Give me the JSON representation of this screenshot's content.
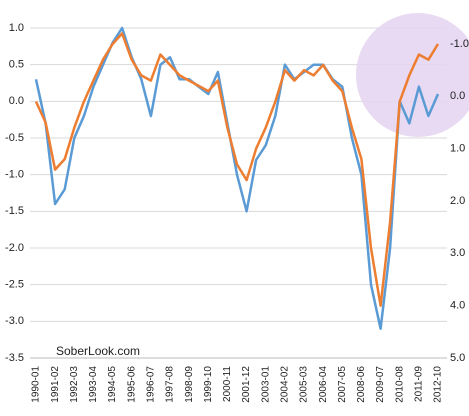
{
  "chart_data": {
    "type": "line",
    "annotations": [
      "SoberLook.com"
    ],
    "categories": [
      "1990-01",
      null,
      "1991-02",
      null,
      "1992-03",
      null,
      "1993-04",
      null,
      "1994-05",
      null,
      "1995-06",
      null,
      "1996-07",
      null,
      "1997-08",
      null,
      "1998-09",
      null,
      "1999-10",
      null,
      "2000-11",
      null,
      "2001-12",
      null,
      "2003-01",
      null,
      "2004-02",
      null,
      "2005-03",
      null,
      "2006-04",
      null,
      "2007-05",
      null,
      "2008-06",
      null,
      "2009-07",
      null,
      "2010-08",
      null,
      "2011-09",
      null,
      "2012-10"
    ],
    "series": [
      {
        "color": "#5b9bd5",
        "values": [
          0.3,
          -0.3,
          -1.4,
          -1.2,
          -0.5,
          -0.2,
          0.2,
          0.5,
          0.8,
          1.0,
          0.6,
          0.3,
          -0.2,
          0.5,
          0.6,
          0.3,
          0.3,
          0.2,
          0.1,
          0.4,
          -0.3,
          -1.0,
          -1.5,
          -0.8,
          -0.6,
          -0.2,
          0.5,
          0.3,
          0.4,
          0.5,
          0.5,
          0.3,
          0.2,
          -0.5,
          -1.0,
          -2.5,
          -3.1,
          -2.0,
          0.0,
          -0.3,
          0.2,
          -0.2,
          0.1
        ]
      },
      {
        "color": "#ed7d31",
        "axis": "y2",
        "values": [
          0.1,
          0.5,
          1.4,
          1.2,
          0.6,
          0.1,
          -0.3,
          -0.7,
          -1.0,
          -1.2,
          -0.7,
          -0.4,
          -0.3,
          -0.8,
          -0.6,
          -0.4,
          -0.3,
          -0.2,
          -0.1,
          -0.3,
          0.6,
          1.3,
          1.6,
          1.0,
          0.6,
          0.1,
          -0.5,
          -0.3,
          -0.5,
          -0.4,
          -0.6,
          -0.3,
          -0.1,
          0.6,
          1.2,
          2.9,
          4.0,
          2.4,
          0.1,
          -0.4,
          -0.8,
          -0.7,
          -1.0
        ]
      }
    ],
    "ylim": [
      -3.5,
      1.0
    ],
    "yticks": [
      {
        "value": 1.0,
        "label": "1.0"
      },
      {
        "value": 0.5,
        "label": "0.5"
      },
      {
        "value": 0.0,
        "label": "0.0"
      },
      {
        "value": -0.5,
        "label": "-0.5"
      },
      {
        "value": -1.0,
        "label": "-1.0"
      },
      {
        "value": -1.5,
        "label": "-1.5"
      },
      {
        "value": -2.0,
        "label": "-2.0"
      },
      {
        "value": -2.5,
        "label": "-2.5"
      },
      {
        "value": -3.0,
        "label": "-3.0"
      },
      {
        "value": -3.5,
        "label": "-3.5"
      }
    ],
    "y2lim": [
      5.0,
      -1.0
    ],
    "y2ticks": [
      {
        "value": -1.0,
        "label": "-1.0"
      },
      {
        "value": 0.0,
        "label": "0.0"
      },
      {
        "value": 1.0,
        "label": "1.0"
      },
      {
        "value": 2.0,
        "label": "2.0"
      },
      {
        "value": 3.0,
        "label": "3.0"
      },
      {
        "value": 4.0,
        "label": "4.0"
      },
      {
        "value": 5.0,
        "label": "5.0"
      }
    ],
    "grid": true
  }
}
